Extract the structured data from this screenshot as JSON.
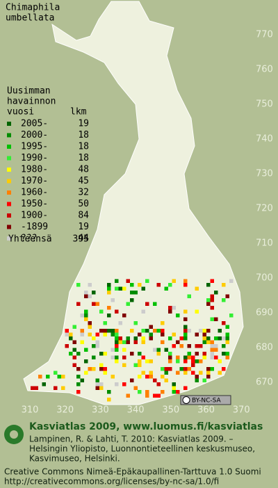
{
  "title": [
    "Chimaphila",
    "umbellata"
  ],
  "legend": {
    "header": [
      "Uusimman",
      "havainnon"
    ],
    "col_year": "vuosi",
    "col_count": "lkm",
    "items": [
      {
        "label": "2005-",
        "count": 19,
        "color": "#006400"
      },
      {
        "label": "2000-",
        "count": 18,
        "color": "#008c00"
      },
      {
        "label": "1995-",
        "count": 18,
        "color": "#00c000"
      },
      {
        "label": "1990-",
        "count": 18,
        "color": "#33ee33"
      },
      {
        "label": "1980-",
        "count": 48,
        "color": "#ffff00"
      },
      {
        "label": "1970-",
        "count": 45,
        "color": "#ffcc00"
      },
      {
        "label": "1960-",
        "count": 32,
        "color": "#ff8000"
      },
      {
        "label": "1950-",
        "count": 50,
        "color": "#ff0000"
      },
      {
        "label": "1900-",
        "count": 84,
        "color": "#cc0000"
      },
      {
        "label": "-1899",
        "count": 19,
        "color": "#800000"
      },
      {
        "label": "???",
        "count": 44,
        "color": "#cccccc"
      }
    ],
    "total_label": "Yhteensä",
    "total": 395
  },
  "grid": {
    "north": [
      770,
      760,
      750,
      740,
      730,
      720,
      710,
      700,
      690,
      680,
      670
    ],
    "east": [
      310,
      320,
      330,
      340,
      350,
      360,
      370
    ]
  },
  "badge": "BY-NC-SA",
  "footer": {
    "heading": "Kasviatlas 2009, www.luomus.fi/kasviatlas",
    "citation": [
      "Lampinen, R. & Lahti, T. 2010: Kasviatlas 2009. –",
      "Helsingin Yliopisto, Luonnontieteellinen keskusmuseo,",
      "Kasvimuseo, Helsinki."
    ],
    "license": [
      "Creative Commons Nimeä-Epäkaupallinen-Tarttuva 1.0 Suomi",
      "http://creativecommons.org/licenses/by-nc-sa/1.0/fi"
    ]
  }
}
